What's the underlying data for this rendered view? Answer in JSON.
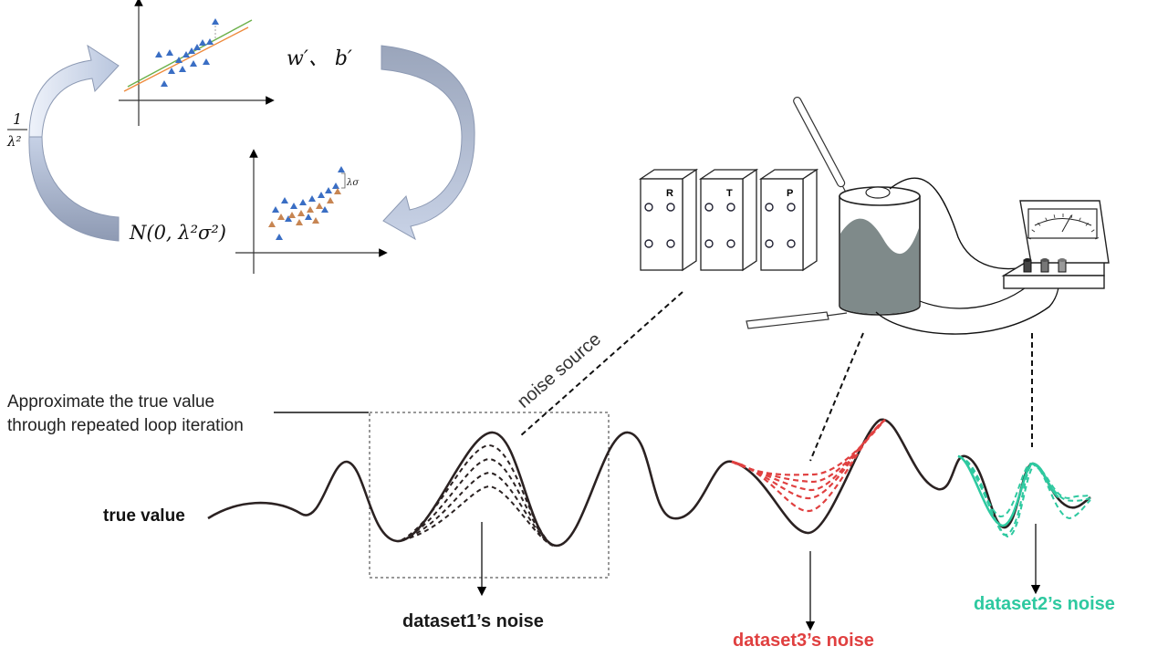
{
  "labels": {
    "true_value": "true value",
    "approx_line1": "Approximate the true value",
    "approx_line2": "through repeated loop iteration",
    "noise_source": "noise source",
    "dataset1": "dataset1’s noise",
    "dataset2": "dataset2’s noise",
    "dataset3": "dataset3’s noise"
  },
  "math": {
    "frac_num": "1",
    "frac_den": "λ²",
    "params": "w′、 b′",
    "normal": "N(0, λ²σ²)",
    "lambda_sigma": "λσ"
  },
  "boxes": [
    {
      "letter": "R"
    },
    {
      "letter": "T"
    },
    {
      "letter": "P"
    }
  ],
  "colors": {
    "curve": "#2b2222",
    "dataset1": "#1a1a1a",
    "dataset2": "#2ec9a0",
    "dataset3": "#e04040",
    "arrow_fill_top": "#dde6f4",
    "arrow_fill_bottom": "#9aa6bd",
    "blue_triangle": "#3a6ec4",
    "orange_triangle": "#c78552",
    "fit_green": "#6cb04a",
    "fit_orange": "#ee8a3c",
    "liquid": "#7f8a8a"
  }
}
